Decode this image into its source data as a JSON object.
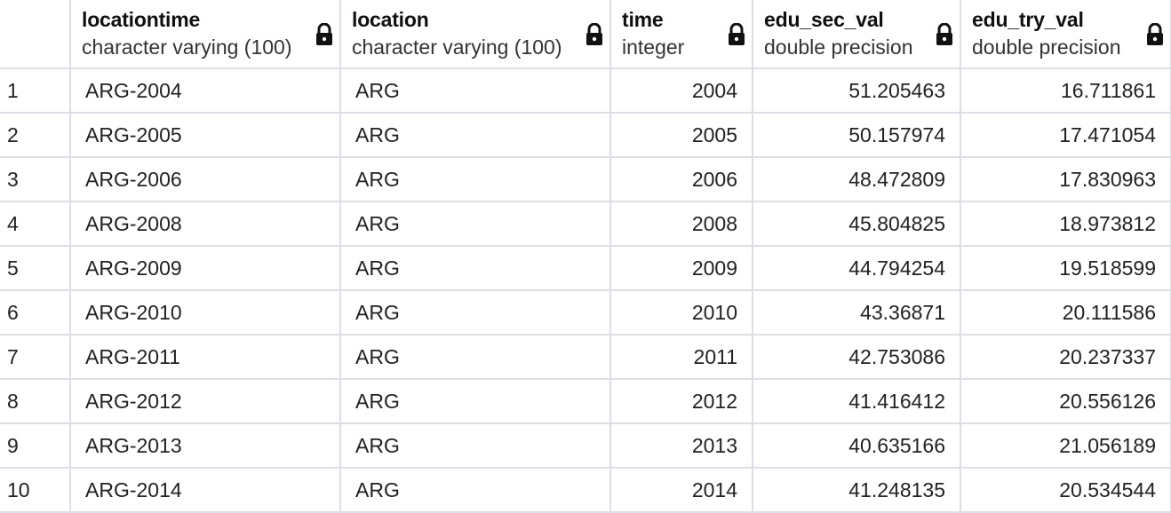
{
  "columns": [
    {
      "name": "locationtime",
      "type": "character varying (100)"
    },
    {
      "name": "location",
      "type": "character varying (100)"
    },
    {
      "name": "time",
      "type": "integer"
    },
    {
      "name": "edu_sec_val",
      "type": "double precision"
    },
    {
      "name": "edu_try_val",
      "type": "double precision"
    }
  ],
  "rows": [
    {
      "n": "1",
      "locationtime": "ARG-2004",
      "location": "ARG",
      "time": "2004",
      "edu_sec_val": "51.205463",
      "edu_try_val": "16.711861"
    },
    {
      "n": "2",
      "locationtime": "ARG-2005",
      "location": "ARG",
      "time": "2005",
      "edu_sec_val": "50.157974",
      "edu_try_val": "17.471054"
    },
    {
      "n": "3",
      "locationtime": "ARG-2006",
      "location": "ARG",
      "time": "2006",
      "edu_sec_val": "48.472809",
      "edu_try_val": "17.830963"
    },
    {
      "n": "4",
      "locationtime": "ARG-2008",
      "location": "ARG",
      "time": "2008",
      "edu_sec_val": "45.804825",
      "edu_try_val": "18.973812"
    },
    {
      "n": "5",
      "locationtime": "ARG-2009",
      "location": "ARG",
      "time": "2009",
      "edu_sec_val": "44.794254",
      "edu_try_val": "19.518599"
    },
    {
      "n": "6",
      "locationtime": "ARG-2010",
      "location": "ARG",
      "time": "2010",
      "edu_sec_val": "43.36871",
      "edu_try_val": "20.111586"
    },
    {
      "n": "7",
      "locationtime": "ARG-2011",
      "location": "ARG",
      "time": "2011",
      "edu_sec_val": "42.753086",
      "edu_try_val": "20.237337"
    },
    {
      "n": "8",
      "locationtime": "ARG-2012",
      "location": "ARG",
      "time": "2012",
      "edu_sec_val": "41.416412",
      "edu_try_val": "20.556126"
    },
    {
      "n": "9",
      "locationtime": "ARG-2013",
      "location": "ARG",
      "time": "2013",
      "edu_sec_val": "40.635166",
      "edu_try_val": "21.056189"
    },
    {
      "n": "10",
      "locationtime": "ARG-2014",
      "location": "ARG",
      "time": "2014",
      "edu_sec_val": "41.248135",
      "edu_try_val": "20.534544"
    }
  ],
  "icons": {
    "column_lock": "lock-icon"
  }
}
